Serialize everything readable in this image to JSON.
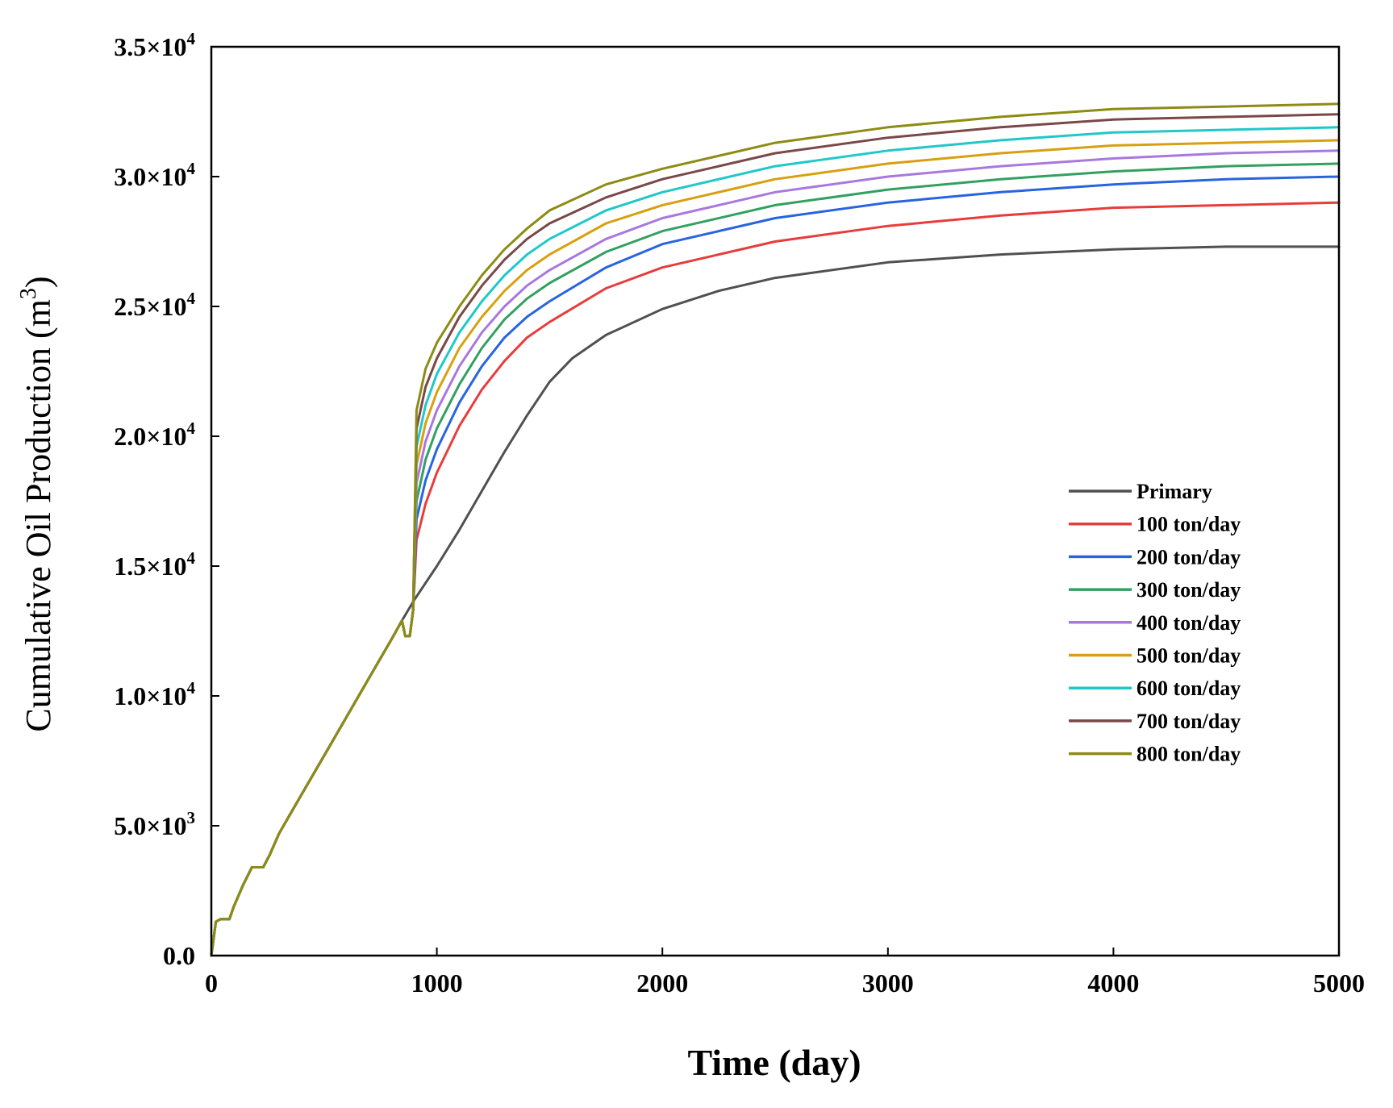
{
  "chart_data": {
    "type": "line",
    "title": "",
    "xlabel": "Time (day)",
    "ylabel": "Cumulative Oil Production (m³)",
    "ylabel_base": "Cumulative Oil Production (m",
    "ylabel_sup": "3",
    "ylabel_close": ")",
    "xlim": [
      0,
      5000
    ],
    "ylim": [
      0,
      35000
    ],
    "x_ticks": [
      0,
      1000,
      2000,
      3000,
      4000,
      5000
    ],
    "x_tick_labels": [
      "0",
      "1000",
      "2000",
      "3000",
      "4000",
      "5000"
    ],
    "y_ticks": [
      {
        "value": 0,
        "mantissa": "0.0",
        "exp": ""
      },
      {
        "value": 5000,
        "mantissa": "5.0×10",
        "exp": "3"
      },
      {
        "value": 10000,
        "mantissa": "1.0×10",
        "exp": "4"
      },
      {
        "value": 15000,
        "mantissa": "1.5×10",
        "exp": "4"
      },
      {
        "value": 20000,
        "mantissa": "2.0×10",
        "exp": "4"
      },
      {
        "value": 25000,
        "mantissa": "2.5×10",
        "exp": "4"
      },
      {
        "value": 30000,
        "mantissa": "3.0×10",
        "exp": "4"
      },
      {
        "value": 35000,
        "mantissa": "3.5×10",
        "exp": "4"
      }
    ],
    "grid": false,
    "legend_position": "right-middle",
    "shared_early": {
      "x": [
        0,
        20,
        40,
        80,
        100,
        140,
        180,
        230,
        260,
        300,
        340,
        400,
        500,
        600,
        700,
        800,
        845
      ],
      "y": [
        0,
        1300,
        1400,
        1400,
        1900,
        2700,
        3400,
        3400,
        3900,
        4700,
        5300,
        6200,
        7700,
        9200,
        10700,
        12200,
        12900
      ]
    },
    "series": [
      {
        "name": "Primary",
        "color": "#505050",
        "x": [
          845,
          900,
          1000,
          1100,
          1200,
          1300,
          1400,
          1500,
          1600,
          1750,
          2000,
          2250,
          2500,
          3000,
          3500,
          4000,
          4500,
          5000
        ],
        "y": [
          12900,
          13700,
          15000,
          16400,
          17900,
          19400,
          20800,
          22100,
          23000,
          23900,
          24900,
          25600,
          26100,
          26700,
          27000,
          27200,
          27300,
          27300
        ]
      },
      {
        "name": "100 ton/day",
        "color": "#e83c3c",
        "x": [
          845,
          860,
          880,
          895,
          910,
          950,
          1000,
          1100,
          1200,
          1300,
          1400,
          1500,
          1750,
          2000,
          2500,
          3000,
          3500,
          4000,
          4500,
          5000
        ],
        "y": [
          12900,
          12300,
          12300,
          13300,
          16000,
          17400,
          18600,
          20400,
          21800,
          22900,
          23800,
          24400,
          25700,
          26500,
          27500,
          28100,
          28500,
          28800,
          28900,
          29000
        ]
      },
      {
        "name": "200 ton/day",
        "color": "#2864e0",
        "x": [
          845,
          860,
          880,
          895,
          910,
          950,
          1000,
          1100,
          1200,
          1300,
          1400,
          1500,
          1750,
          2000,
          2500,
          3000,
          3500,
          4000,
          4500,
          5000
        ],
        "y": [
          12900,
          12300,
          12300,
          13300,
          16800,
          18300,
          19500,
          21300,
          22700,
          23800,
          24600,
          25200,
          26500,
          27400,
          28400,
          29000,
          29400,
          29700,
          29900,
          30000
        ]
      },
      {
        "name": "300 ton/day",
        "color": "#32a060",
        "x": [
          845,
          860,
          880,
          895,
          910,
          950,
          1000,
          1100,
          1200,
          1300,
          1400,
          1500,
          1750,
          2000,
          2500,
          3000,
          3500,
          4000,
          4500,
          5000
        ],
        "y": [
          12900,
          12300,
          12300,
          13300,
          17500,
          19100,
          20300,
          22000,
          23400,
          24500,
          25300,
          25900,
          27100,
          27900,
          28900,
          29500,
          29900,
          30200,
          30400,
          30500
        ]
      },
      {
        "name": "400 ton/day",
        "color": "#a878e0",
        "x": [
          845,
          860,
          880,
          895,
          910,
          950,
          1000,
          1100,
          1200,
          1300,
          1400,
          1500,
          1750,
          2000,
          2500,
          3000,
          3500,
          4000,
          4500,
          5000
        ],
        "y": [
          12900,
          12300,
          12300,
          13300,
          18200,
          19800,
          21000,
          22700,
          24000,
          25000,
          25800,
          26400,
          27600,
          28400,
          29400,
          30000,
          30400,
          30700,
          30900,
          31000
        ]
      },
      {
        "name": "500 ton/day",
        "color": "#d8a010",
        "x": [
          845,
          860,
          880,
          895,
          910,
          950,
          1000,
          1100,
          1200,
          1300,
          1400,
          1500,
          1750,
          2000,
          2500,
          3000,
          3500,
          4000,
          4500,
          5000
        ],
        "y": [
          12900,
          12300,
          12300,
          13300,
          18900,
          20500,
          21700,
          23400,
          24600,
          25600,
          26400,
          27000,
          28200,
          28900,
          29900,
          30500,
          30900,
          31200,
          31300,
          31400
        ]
      },
      {
        "name": "600 ton/day",
        "color": "#20c8c8",
        "x": [
          845,
          860,
          880,
          895,
          910,
          950,
          1000,
          1100,
          1200,
          1300,
          1400,
          1500,
          1750,
          2000,
          2500,
          3000,
          3500,
          4000,
          4500,
          5000
        ],
        "y": [
          12900,
          12300,
          12300,
          13300,
          19600,
          21200,
          22400,
          24000,
          25200,
          26200,
          27000,
          27600,
          28700,
          29400,
          30400,
          31000,
          31400,
          31700,
          31800,
          31900
        ]
      },
      {
        "name": "700 ton/day",
        "color": "#7a4848",
        "x": [
          845,
          860,
          880,
          895,
          910,
          950,
          1000,
          1100,
          1200,
          1300,
          1400,
          1500,
          1750,
          2000,
          2500,
          3000,
          3500,
          4000,
          4500,
          5000
        ],
        "y": [
          12900,
          12300,
          12300,
          13300,
          20300,
          21900,
          23000,
          24600,
          25800,
          26800,
          27600,
          28200,
          29200,
          29900,
          30900,
          31500,
          31900,
          32200,
          32300,
          32400
        ]
      },
      {
        "name": "800 ton/day",
        "color": "#8c8c14",
        "x": [
          845,
          860,
          880,
          895,
          910,
          950,
          1000,
          1100,
          1200,
          1300,
          1400,
          1500,
          1750,
          2000,
          2500,
          3000,
          3500,
          4000,
          4500,
          5000
        ],
        "y": [
          12900,
          12300,
          12300,
          13300,
          21000,
          22600,
          23600,
          25000,
          26200,
          27200,
          28000,
          28700,
          29700,
          30300,
          31300,
          31900,
          32300,
          32600,
          32700,
          32800
        ]
      }
    ]
  }
}
